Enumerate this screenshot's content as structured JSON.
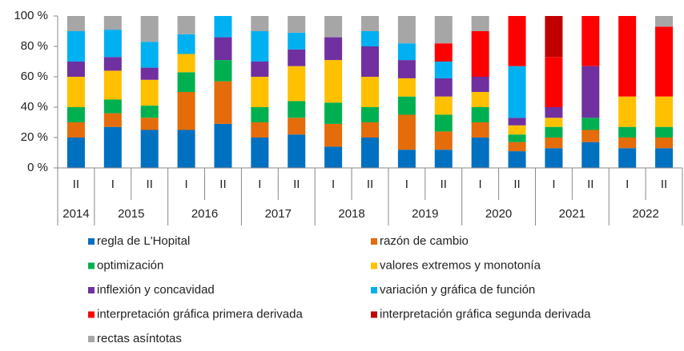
{
  "chart_data": {
    "type": "stacked_bar",
    "categories": [
      "II",
      "I",
      "II",
      "I",
      "II",
      "I",
      "II",
      "I",
      "II",
      "I",
      "II",
      "I",
      "II",
      "I",
      "II",
      "I",
      "II"
    ],
    "years": [
      "2014",
      "2015",
      "2016",
      "2017",
      "2018",
      "2019",
      "2020",
      "2021",
      "2022"
    ],
    "ylim": [
      0,
      100
    ],
    "yticks": [
      {
        "value": 0,
        "label": "0 %"
      },
      {
        "value": 20,
        "label": "20 %"
      },
      {
        "value": 40,
        "label": "40 %"
      },
      {
        "value": 60,
        "label": "60 %"
      },
      {
        "value": 80,
        "label": "80 %"
      },
      {
        "value": 100,
        "label": "100 %"
      }
    ],
    "series": [
      {
        "name": "regla de L'Hopital",
        "color": "#0070c0",
        "values": [
          20,
          27,
          25,
          25,
          29,
          20,
          22,
          14,
          20,
          12,
          12,
          20,
          11,
          13,
          17,
          13,
          13
        ]
      },
      {
        "name": "razón de cambio",
        "color": "#e46c0a",
        "values": [
          10,
          9,
          8,
          25,
          28,
          10,
          11,
          15,
          10,
          23,
          12,
          10,
          6,
          7,
          8,
          7,
          7
        ]
      },
      {
        "name": "optimización",
        "color": "#00b050",
        "values": [
          10,
          9,
          8,
          13,
          14,
          10,
          11,
          14,
          10,
          12,
          11,
          10,
          5,
          7,
          8,
          7,
          7
        ]
      },
      {
        "name": "valores extremos y monotonía",
        "color": "#ffc000",
        "values": [
          20,
          19,
          17,
          12,
          0,
          20,
          23,
          28,
          20,
          12,
          12,
          10,
          6,
          6,
          0,
          20,
          20
        ]
      },
      {
        "name": "inflexión y concavidad",
        "color": "#7030a0",
        "values": [
          10,
          9,
          8,
          0,
          15,
          10,
          11,
          15,
          20,
          12,
          12,
          10,
          5,
          7,
          34,
          0,
          0
        ]
      },
      {
        "name": "variación y gráfica de función",
        "color": "#00b0f0",
        "values": [
          20,
          18,
          17,
          13,
          14,
          20,
          11,
          0,
          10,
          11,
          11,
          0,
          34,
          0,
          0,
          0,
          0
        ]
      },
      {
        "name": "interpretación gráfica primera derivada",
        "color": "#ff0000",
        "values": [
          0,
          0,
          0,
          0,
          0,
          0,
          0,
          0,
          0,
          0,
          12,
          30,
          33,
          33,
          33,
          53,
          46
        ]
      },
      {
        "name": "interpretación gráfica segunda derivada",
        "color": "#c00000",
        "values": [
          0,
          0,
          0,
          0,
          0,
          0,
          0,
          0,
          0,
          0,
          0,
          0,
          0,
          27,
          0,
          0,
          0
        ]
      },
      {
        "name": "rectas asíntotas",
        "color": "#a6a6a6",
        "values": [
          10,
          9,
          17,
          12,
          0,
          10,
          11,
          14,
          10,
          18,
          18,
          10,
          0,
          0,
          0,
          0,
          7
        ]
      }
    ]
  }
}
